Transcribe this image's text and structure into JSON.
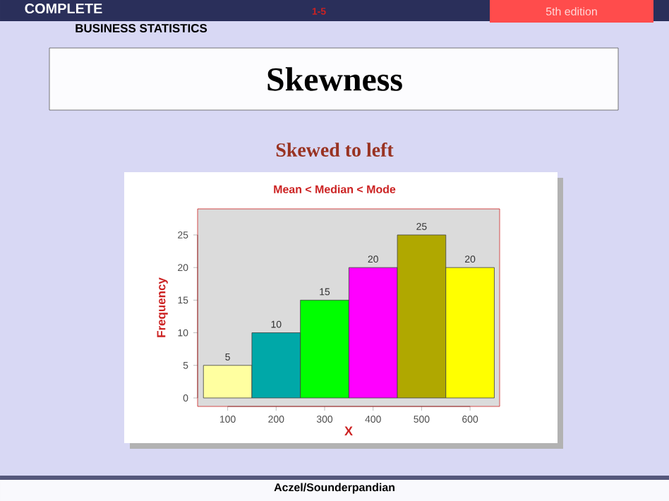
{
  "chart_data": {
    "type": "bar",
    "title": "Skewness",
    "subtitle": "Skewed to left",
    "annotations": [
      "Mean < Median < Mode",
      "COMPLETE",
      "BUSINESS STATISTICS",
      "1-5",
      "5th edition",
      "Aczel/Sounderpandian"
    ],
    "categories": [
      "100",
      "200",
      "300",
      "400",
      "500",
      "600"
    ],
    "values": [
      5,
      10,
      15,
      20,
      25,
      20
    ],
    "colors": [
      "#ffffa0",
      "#00a8a8",
      "#00ff00",
      "#ff00ff",
      "#b0a800",
      "#ffff00"
    ],
    "xlabel": "X",
    "ylabel": "Frequency",
    "ylim": [
      -1.3,
      29
    ],
    "yticks": [
      0,
      5,
      10,
      15,
      20,
      25
    ],
    "data_labels": true
  }
}
